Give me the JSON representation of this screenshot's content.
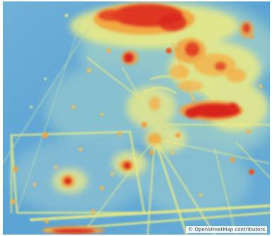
{
  "map": {
    "type": "heatmap",
    "color_scale": {
      "low": "#4f9fd4",
      "low_mid": "#8cc6d6",
      "mid": "#f3ef7a",
      "high_mid": "#f6a33a",
      "high": "#d81e1e"
    },
    "attribution": "© OpenStreetMap contributors"
  }
}
